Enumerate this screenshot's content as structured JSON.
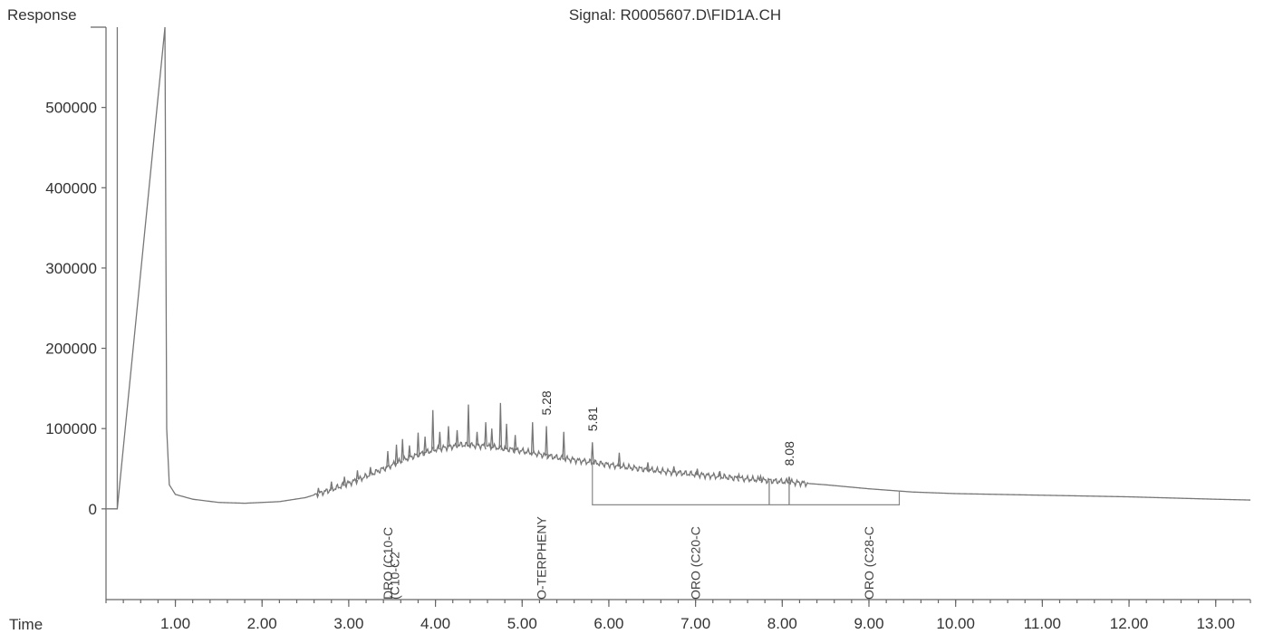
{
  "chart_data": {
    "type": "line",
    "title": "Signal: R0005607.D\\FID1A.CH",
    "ylabel": "Response",
    "xlabel": "Time",
    "xlim": [
      0.2,
      13.4
    ],
    "ylim": [
      -113000,
      600000
    ],
    "y_ticks": [
      {
        "value": 0,
        "label": "0"
      },
      {
        "value": 100000,
        "label": "100000"
      },
      {
        "value": 200000,
        "label": "200000"
      },
      {
        "value": 300000,
        "label": "300000"
      },
      {
        "value": 400000,
        "label": "400000"
      },
      {
        "value": 500000,
        "label": "500000"
      }
    ],
    "x_ticks": [
      {
        "value": 1,
        "label": "1.00"
      },
      {
        "value": 2,
        "label": "2.00"
      },
      {
        "value": 3,
        "label": "3.00"
      },
      {
        "value": 4,
        "label": "4.00"
      },
      {
        "value": 5,
        "label": "5.00"
      },
      {
        "value": 6,
        "label": "6.00"
      },
      {
        "value": 7,
        "label": "7.00"
      },
      {
        "value": 8,
        "label": "8.00"
      },
      {
        "value": 9,
        "label": "9.00"
      },
      {
        "value": 10,
        "label": "10.00"
      },
      {
        "value": 11,
        "label": "11.00"
      },
      {
        "value": 12,
        "label": "12.00"
      },
      {
        "value": 13,
        "label": "13.00"
      }
    ],
    "solvent_front": {
      "start": 0.33,
      "end": 0.88
    },
    "baseline_points": [
      [
        0.88,
        590000
      ],
      [
        0.9,
        100000
      ],
      [
        0.93,
        30000
      ],
      [
        1.0,
        18000
      ],
      [
        1.2,
        12000
      ],
      [
        1.5,
        8000
      ],
      [
        1.8,
        7000
      ],
      [
        2.2,
        9000
      ],
      [
        2.5,
        14000
      ],
      [
        2.8,
        24000
      ],
      [
        3.1,
        36000
      ],
      [
        3.4,
        50000
      ],
      [
        3.7,
        64000
      ],
      [
        4.0,
        74000
      ],
      [
        4.3,
        80000
      ],
      [
        4.6,
        78000
      ],
      [
        5.0,
        72000
      ],
      [
        5.4,
        64000
      ],
      [
        5.8,
        58000
      ],
      [
        6.2,
        52000
      ],
      [
        6.6,
        47000
      ],
      [
        7.0,
        43000
      ],
      [
        7.5,
        38000
      ],
      [
        8.0,
        34000
      ],
      [
        8.5,
        30000
      ],
      [
        9.0,
        25000
      ],
      [
        9.5,
        21000
      ],
      [
        10.0,
        19000
      ],
      [
        11.0,
        17000
      ],
      [
        12.0,
        15000
      ],
      [
        13.0,
        12000
      ],
      [
        13.4,
        11000
      ]
    ],
    "spikes": [
      [
        2.65,
        26000
      ],
      [
        2.8,
        34000
      ],
      [
        2.95,
        40000
      ],
      [
        3.1,
        48000
      ],
      [
        3.25,
        52000
      ],
      [
        3.45,
        72000
      ],
      [
        3.55,
        80000
      ],
      [
        3.62,
        87000
      ],
      [
        3.7,
        79000
      ],
      [
        3.8,
        95000
      ],
      [
        3.88,
        90000
      ],
      [
        3.97,
        123000
      ],
      [
        4.05,
        96000
      ],
      [
        4.15,
        103000
      ],
      [
        4.25,
        98000
      ],
      [
        4.38,
        130000
      ],
      [
        4.48,
        96000
      ],
      [
        4.58,
        108000
      ],
      [
        4.65,
        100000
      ],
      [
        4.75,
        132000
      ],
      [
        4.82,
        106000
      ],
      [
        4.92,
        92000
      ],
      [
        5.12,
        108000
      ],
      [
        5.28,
        103000
      ],
      [
        5.48,
        96000
      ],
      [
        5.81,
        83000
      ],
      [
        6.12,
        70000
      ],
      [
        6.45,
        58000
      ],
      [
        6.75,
        53000
      ],
      [
        7.02,
        50000
      ],
      [
        7.28,
        47000
      ],
      [
        7.5,
        43000
      ],
      [
        7.75,
        41000
      ],
      [
        8.08,
        40000
      ]
    ],
    "peak_labels": [
      {
        "time": 5.28,
        "label": "5.28",
        "y": 103000
      },
      {
        "time": 5.81,
        "label": "5.81",
        "y": 83000
      },
      {
        "time": 8.08,
        "label": "8.08",
        "y": 40000
      }
    ],
    "integration_windows": [
      {
        "start": 5.81,
        "end": 7.85,
        "level": 5000
      },
      {
        "start": 7.85,
        "end": 8.08,
        "level": 5000
      },
      {
        "start": 8.08,
        "end": 9.35,
        "level": 5000
      }
    ],
    "compound_labels": [
      {
        "time": 3.45,
        "label": "DRO (C10-C"
      },
      {
        "time": 3.53,
        "label": "(C10-C2"
      },
      {
        "time": 5.22,
        "label": "O-TERPHENY"
      },
      {
        "time": 7.0,
        "label": "ORO (C20-C"
      },
      {
        "time": 9.0,
        "label": "ORO (C28-C"
      }
    ]
  }
}
